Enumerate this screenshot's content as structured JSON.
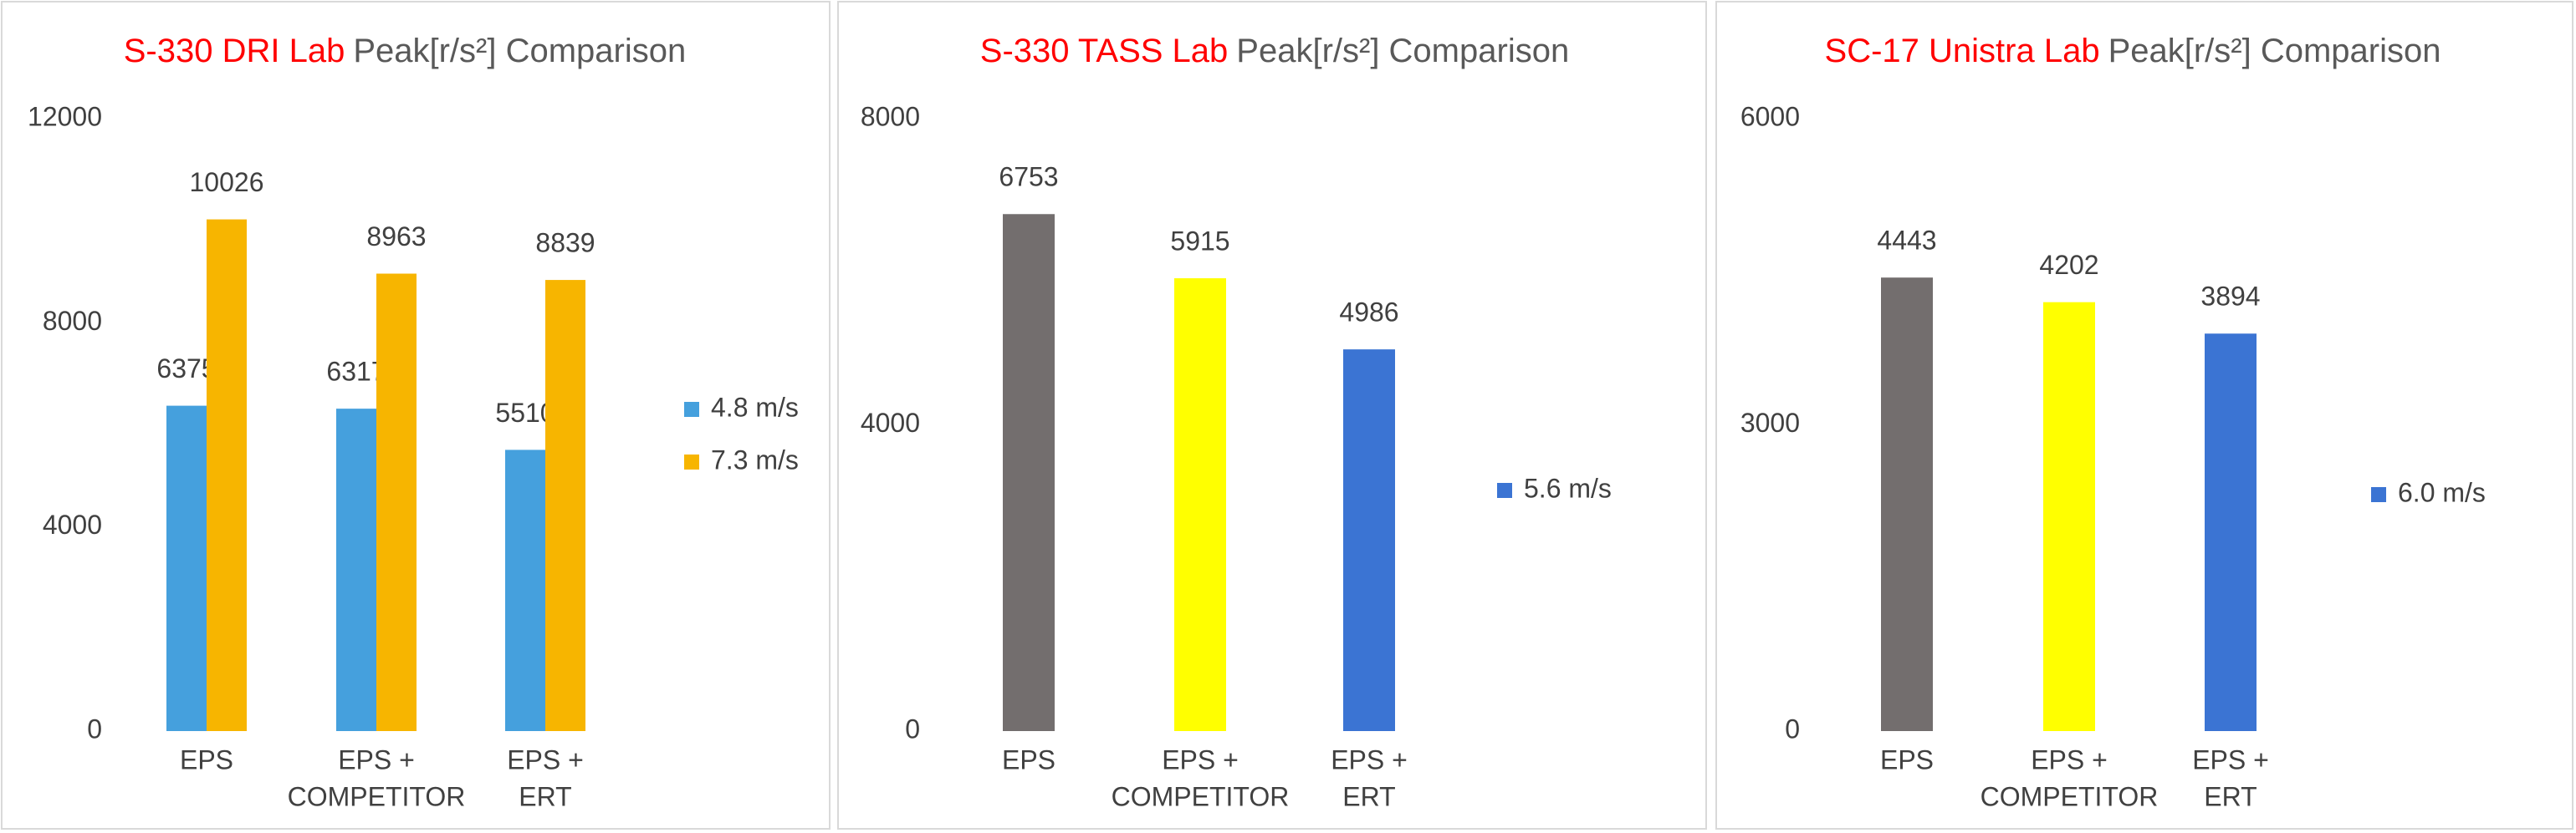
{
  "chart_data": [
    {
      "type": "bar",
      "title": [
        "S-330 DRI Lab",
        "Peak[r/s²] Comparison"
      ],
      "categories": [
        [
          "EPS"
        ],
        [
          "EPS +",
          "COMPETITOR"
        ],
        [
          "EPS +",
          "ERT"
        ]
      ],
      "series": [
        {
          "name": "4.8 m/s",
          "color": "#45a0dd",
          "values": [
            6375,
            6317,
            5510
          ]
        },
        {
          "name": "7.3 m/s",
          "color": "#f7b500",
          "values": [
            10026,
            8963,
            8839
          ]
        }
      ],
      "ylim": [
        0,
        12000
      ],
      "yticks": [
        0,
        4000,
        8000,
        12000
      ],
      "grid": false,
      "legend": "right"
    },
    {
      "type": "bar",
      "title": [
        "S-330 TASS Lab",
        "Peak[r/s²] Comparison"
      ],
      "categories": [
        [
          "EPS"
        ],
        [
          "EPS +",
          "COMPETITOR"
        ],
        [
          "EPS +",
          "ERT"
        ]
      ],
      "series": [
        {
          "name": "5.6 m/s",
          "color": "#3b74d3",
          "bar_colors": [
            "#736e6e",
            "#ffff00",
            "#3b74d3"
          ],
          "values": [
            6753,
            5915,
            4986
          ]
        }
      ],
      "ylim": [
        0,
        8000
      ],
      "yticks": [
        0,
        4000,
        8000
      ],
      "grid": false,
      "legend": "right"
    },
    {
      "type": "bar",
      "title": [
        "SC-17 Unistra Lab",
        "Peak[r/s²] Comparison"
      ],
      "categories": [
        [
          "EPS"
        ],
        [
          "EPS +",
          "COMPETITOR"
        ],
        [
          "EPS +",
          "ERT"
        ]
      ],
      "series": [
        {
          "name": "6.0 m/s",
          "color": "#3b74d3",
          "bar_colors": [
            "#736e6e",
            "#ffff00",
            "#3b74d3"
          ],
          "values": [
            4443,
            4202,
            3894
          ]
        }
      ],
      "ylim": [
        0,
        6000
      ],
      "yticks": [
        0,
        3000,
        6000
      ],
      "grid": false,
      "legend": "right"
    }
  ]
}
